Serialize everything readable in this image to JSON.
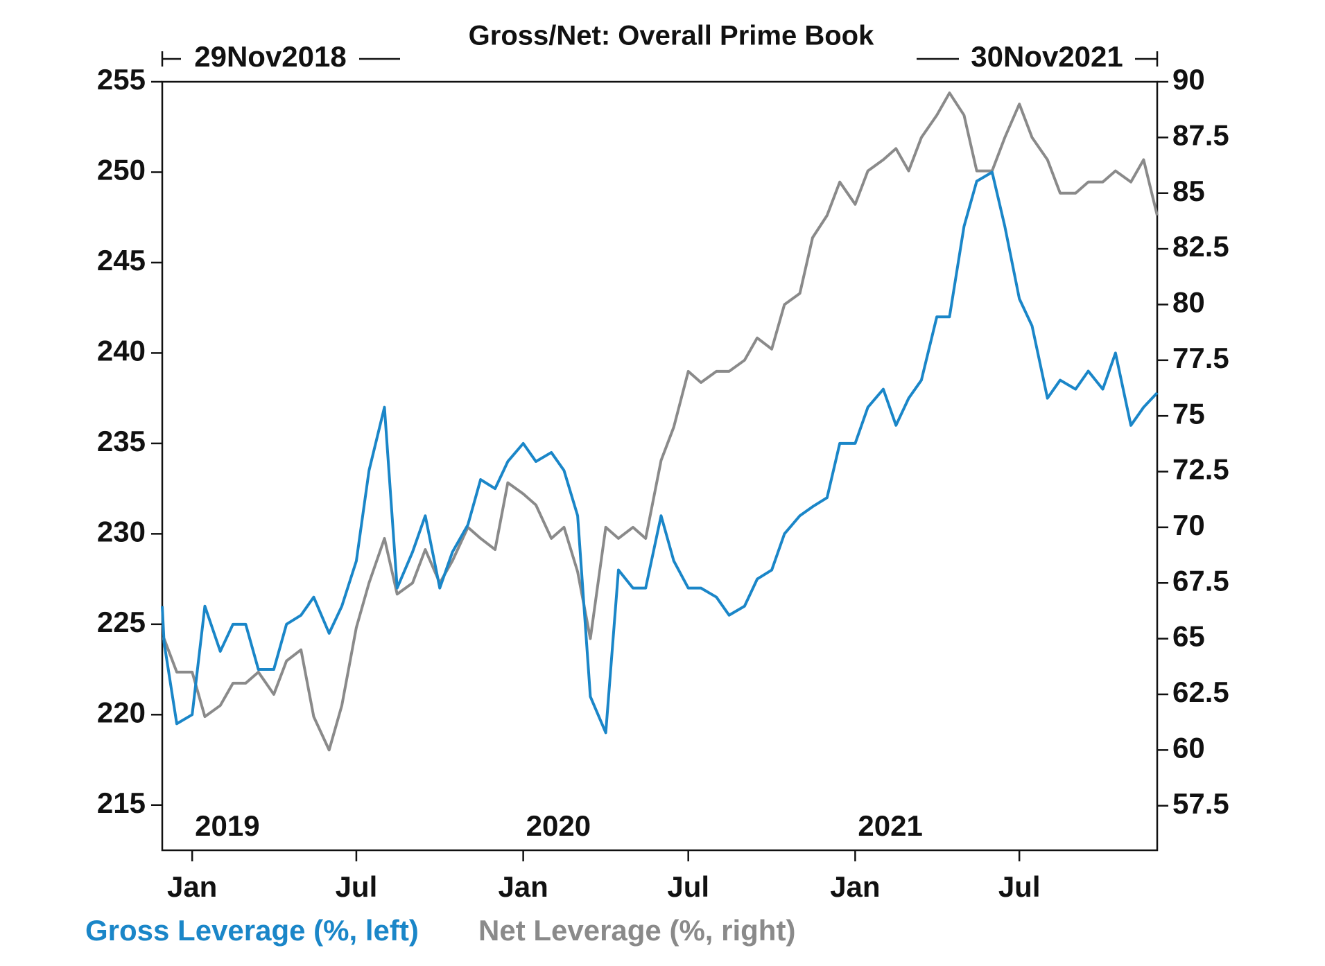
{
  "chart_data": {
    "type": "line",
    "title": "Gross/Net: Overall Prime Book",
    "x": [
      "2018-11-29",
      "2018-12-01",
      "2018-12-15",
      "2019-01-01",
      "2019-01-15",
      "2019-02-01",
      "2019-02-15",
      "2019-03-01",
      "2019-03-15",
      "2019-04-01",
      "2019-04-15",
      "2019-05-01",
      "2019-05-15",
      "2019-06-01",
      "2019-06-15",
      "2019-07-01",
      "2019-07-15",
      "2019-08-01",
      "2019-08-15",
      "2019-09-01",
      "2019-09-15",
      "2019-10-01",
      "2019-10-15",
      "2019-11-01",
      "2019-11-15",
      "2019-12-01",
      "2019-12-15",
      "2020-01-01",
      "2020-01-15",
      "2020-02-01",
      "2020-02-15",
      "2020-03-01",
      "2020-03-15",
      "2020-04-01",
      "2020-04-15",
      "2020-05-01",
      "2020-05-15",
      "2020-06-01",
      "2020-06-15",
      "2020-07-01",
      "2020-07-15",
      "2020-08-01",
      "2020-08-15",
      "2020-09-01",
      "2020-09-15",
      "2020-10-01",
      "2020-10-15",
      "2020-11-01",
      "2020-11-15",
      "2020-12-01",
      "2020-12-15",
      "2021-01-01",
      "2021-01-15",
      "2021-02-01",
      "2021-02-15",
      "2021-03-01",
      "2021-03-15",
      "2021-04-01",
      "2021-04-15",
      "2021-05-01",
      "2021-05-15",
      "2021-06-01",
      "2021-06-15",
      "2021-07-01",
      "2021-07-15",
      "2021-08-01",
      "2021-08-15",
      "2021-09-01",
      "2021-09-15",
      "2021-10-01",
      "2021-10-15",
      "2021-11-01",
      "2021-11-15",
      "2021-11-30"
    ],
    "series": [
      {
        "name": "Gross Leverage (%, left)",
        "color": "#1a86c8",
        "axis": "y",
        "values": [
          226,
          224,
          219.5,
          220,
          226,
          223.5,
          225,
          225,
          222.5,
          222.5,
          225,
          225.5,
          226.5,
          224.5,
          226,
          228.5,
          233.5,
          237,
          227,
          229,
          231,
          227,
          229,
          230.5,
          233,
          232.5,
          234,
          235,
          234,
          234.5,
          233.5,
          231,
          221,
          219,
          228,
          227,
          227,
          231,
          228.5,
          227,
          227,
          226.5,
          225.5,
          226,
          227.5,
          228,
          230,
          231,
          231.5,
          232,
          235,
          235,
          237,
          238,
          236,
          237.5,
          238.5,
          242,
          242,
          247,
          249.5,
          250,
          247,
          243,
          241.5,
          237.5,
          238.5,
          238,
          239,
          238,
          240,
          236,
          237,
          237.8
        ]
      },
      {
        "name": "Net Leverage (%, right)",
        "color": "#8a8a8a",
        "axis": "y2",
        "values": [
          65,
          65,
          63.5,
          63.5,
          61.5,
          62,
          63,
          63,
          63.5,
          62.5,
          64,
          64.5,
          61.5,
          60,
          62,
          65.5,
          67.5,
          69.5,
          67,
          67.5,
          69,
          67.5,
          68.5,
          70,
          69.5,
          69,
          72,
          71.5,
          71,
          69.5,
          70,
          68,
          65,
          70,
          69.5,
          70,
          69.5,
          73,
          74.5,
          77,
          76.5,
          77,
          77,
          77.5,
          78.5,
          78,
          80,
          80.5,
          83,
          84,
          85.5,
          84.5,
          86,
          86.5,
          87,
          86,
          87.5,
          88.5,
          89.5,
          88.5,
          86,
          86,
          87.5,
          89,
          87.5,
          86.5,
          85,
          85,
          85.5,
          85.5,
          86,
          85.5,
          86.5,
          84
        ]
      }
    ],
    "xlim": [
      {
        "value": "2018-11-29",
        "label": "29Nov2018"
      },
      {
        "value": "2021-11-30",
        "label": "30Nov2021"
      }
    ],
    "xticks": [
      {
        "value": "2019-01-01",
        "label": "Jan"
      },
      {
        "value": "2019-07-01",
        "label": "Jul"
      },
      {
        "value": "2020-01-01",
        "label": "Jan"
      },
      {
        "value": "2020-07-01",
        "label": "Jul"
      },
      {
        "value": "2021-01-01",
        "label": "Jan"
      },
      {
        "value": "2021-07-01",
        "label": "Jul"
      }
    ],
    "year_labels": [
      {
        "value": "2019-01-01",
        "label": "2019"
      },
      {
        "value": "2020-01-01",
        "label": "2020"
      },
      {
        "value": "2021-01-01",
        "label": "2021"
      }
    ],
    "ylim": [
      212.5,
      255
    ],
    "yticks": [
      215,
      220,
      225,
      230,
      235,
      240,
      245,
      250,
      255
    ],
    "y2lim": [
      55.5,
      90
    ],
    "y2ticks": [
      57.5,
      60,
      62.5,
      65,
      67.5,
      70,
      72.5,
      75,
      77.5,
      80,
      82.5,
      85,
      87.5,
      90
    ],
    "grid": false
  }
}
